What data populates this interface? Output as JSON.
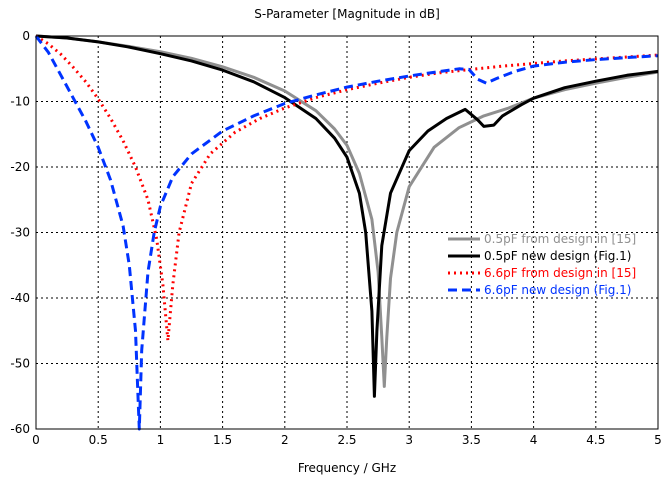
{
  "chart_data": {
    "type": "line",
    "title": "S-Parameter [Magnitude in dB]",
    "xlabel": "Frequency / GHz",
    "ylabel": "",
    "xlim": [
      0,
      5
    ],
    "ylim": [
      -60,
      0
    ],
    "xticks": [
      "0",
      "0.5",
      "1",
      "1.5",
      "2",
      "2.5",
      "3",
      "3.5",
      "4",
      "4.5",
      "5"
    ],
    "yticks": [
      "0",
      "-10",
      "-20",
      "-30",
      "-40",
      "-50",
      "-60"
    ],
    "grid": true,
    "legend_position": "right",
    "series": [
      {
        "name": "0.5pF from design in [15]",
        "color": "#909090",
        "dash": "solid",
        "points": [
          [
            0,
            0
          ],
          [
            0.25,
            -0.3
          ],
          [
            0.5,
            -0.9
          ],
          [
            0.75,
            -1.6
          ],
          [
            1.0,
            -2.4
          ],
          [
            1.25,
            -3.4
          ],
          [
            1.5,
            -4.7
          ],
          [
            1.75,
            -6.3
          ],
          [
            2.0,
            -8.4
          ],
          [
            2.25,
            -11.4
          ],
          [
            2.4,
            -14.2
          ],
          [
            2.5,
            -16.7
          ],
          [
            2.6,
            -21
          ],
          [
            2.7,
            -28
          ],
          [
            2.75,
            -36
          ],
          [
            2.78,
            -46
          ],
          [
            2.8,
            -53.5
          ],
          [
            2.82,
            -46
          ],
          [
            2.85,
            -37
          ],
          [
            2.9,
            -30
          ],
          [
            3.0,
            -23
          ],
          [
            3.2,
            -17
          ],
          [
            3.4,
            -14
          ],
          [
            3.6,
            -12.2
          ],
          [
            3.8,
            -11
          ],
          [
            4.0,
            -9.5
          ],
          [
            4.25,
            -8.2
          ],
          [
            4.5,
            -7.2
          ],
          [
            4.75,
            -6.3
          ],
          [
            5.0,
            -5.5
          ]
        ]
      },
      {
        "name": "0.5pF new design (Fig.1)",
        "color": "#000000",
        "dash": "solid",
        "points": [
          [
            0,
            0
          ],
          [
            0.25,
            -0.3
          ],
          [
            0.5,
            -0.9
          ],
          [
            0.75,
            -1.7
          ],
          [
            1.0,
            -2.7
          ],
          [
            1.25,
            -3.8
          ],
          [
            1.5,
            -5.2
          ],
          [
            1.75,
            -7.0
          ],
          [
            2.0,
            -9.4
          ],
          [
            2.25,
            -12.6
          ],
          [
            2.4,
            -15.6
          ],
          [
            2.5,
            -18.5
          ],
          [
            2.6,
            -24
          ],
          [
            2.65,
            -30
          ],
          [
            2.7,
            -42
          ],
          [
            2.72,
            -55
          ],
          [
            2.74,
            -45
          ],
          [
            2.78,
            -32
          ],
          [
            2.85,
            -24
          ],
          [
            3.0,
            -17.5
          ],
          [
            3.15,
            -14.5
          ],
          [
            3.3,
            -12.6
          ],
          [
            3.45,
            -11.2
          ],
          [
            3.55,
            -12.8
          ],
          [
            3.6,
            -13.8
          ],
          [
            3.68,
            -13.6
          ],
          [
            3.75,
            -12.2
          ],
          [
            3.9,
            -10.5
          ],
          [
            4.0,
            -9.5
          ],
          [
            4.25,
            -7.9
          ],
          [
            4.5,
            -6.9
          ],
          [
            4.75,
            -6.0
          ],
          [
            5.0,
            -5.4
          ]
        ]
      },
      {
        "name": "6.6pF from design in [15]",
        "color": "#ff0000",
        "dash": "dotted",
        "points": [
          [
            0,
            0
          ],
          [
            0.1,
            -1.2
          ],
          [
            0.2,
            -2.8
          ],
          [
            0.3,
            -4.8
          ],
          [
            0.4,
            -7.0
          ],
          [
            0.5,
            -9.6
          ],
          [
            0.6,
            -12.6
          ],
          [
            0.7,
            -16
          ],
          [
            0.8,
            -20
          ],
          [
            0.9,
            -25
          ],
          [
            0.97,
            -31
          ],
          [
            1.02,
            -38
          ],
          [
            1.06,
            -46.5
          ],
          [
            1.1,
            -38
          ],
          [
            1.15,
            -30
          ],
          [
            1.25,
            -22.5
          ],
          [
            1.4,
            -18
          ],
          [
            1.6,
            -14.7
          ],
          [
            1.8,
            -12.6
          ],
          [
            2.0,
            -11
          ],
          [
            2.25,
            -9.4
          ],
          [
            2.5,
            -8.2
          ],
          [
            2.75,
            -7.2
          ],
          [
            3.0,
            -6.3
          ],
          [
            3.25,
            -5.6
          ],
          [
            3.5,
            -5.1
          ],
          [
            3.75,
            -4.6
          ],
          [
            4.0,
            -4.2
          ],
          [
            4.25,
            -3.8
          ],
          [
            4.5,
            -3.5
          ],
          [
            4.75,
            -3.2
          ],
          [
            5.0,
            -2.9
          ]
        ]
      },
      {
        "name": "6.6pF new design (Fig.1)",
        "color": "#0033ff",
        "dash": "dashed",
        "points": [
          [
            0,
            0
          ],
          [
            0.1,
            -2.5
          ],
          [
            0.2,
            -6
          ],
          [
            0.3,
            -9.5
          ],
          [
            0.4,
            -13
          ],
          [
            0.5,
            -17
          ],
          [
            0.6,
            -22
          ],
          [
            0.7,
            -29
          ],
          [
            0.75,
            -35
          ],
          [
            0.8,
            -45
          ],
          [
            0.82,
            -55
          ],
          [
            0.83,
            -60
          ],
          [
            0.85,
            -48
          ],
          [
            0.9,
            -36
          ],
          [
            0.95,
            -30
          ],
          [
            1.0,
            -26
          ],
          [
            1.1,
            -21.5
          ],
          [
            1.25,
            -18
          ],
          [
            1.5,
            -14.5
          ],
          [
            1.75,
            -12.2
          ],
          [
            2.0,
            -10.3
          ],
          [
            2.25,
            -9
          ],
          [
            2.5,
            -7.8
          ],
          [
            2.75,
            -6.9
          ],
          [
            3.0,
            -6.1
          ],
          [
            3.25,
            -5.4
          ],
          [
            3.4,
            -5.0
          ],
          [
            3.48,
            -5.1
          ],
          [
            3.55,
            -6.6
          ],
          [
            3.62,
            -7.2
          ],
          [
            3.7,
            -6.5
          ],
          [
            3.85,
            -5.4
          ],
          [
            4.0,
            -4.6
          ],
          [
            4.25,
            -4.0
          ],
          [
            4.5,
            -3.6
          ],
          [
            4.75,
            -3.3
          ],
          [
            5.0,
            -3.0
          ]
        ]
      }
    ]
  }
}
